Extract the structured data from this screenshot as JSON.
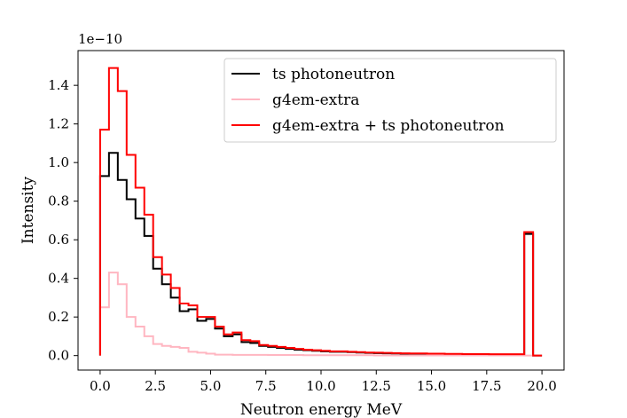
{
  "chart_data": {
    "type": "line",
    "drawstyle": "steps",
    "xlabel": "Neutron energy MeV",
    "ylabel": "Intensity",
    "y_offset_text": "1e−10",
    "xlim": [
      -1.0,
      21.0
    ],
    "ylim": [
      -0.075,
      1.58
    ],
    "xticks": [
      0.0,
      2.5,
      5.0,
      7.5,
      10.0,
      12.5,
      15.0,
      17.5,
      20.0
    ],
    "xtick_labels": [
      "0.0",
      "2.5",
      "5.0",
      "7.5",
      "10.0",
      "12.5",
      "15.0",
      "17.5",
      "20.0"
    ],
    "yticks": [
      0.0,
      0.2,
      0.4,
      0.6,
      0.8,
      1.0,
      1.2,
      1.4
    ],
    "ytick_labels": [
      "0.0",
      "0.2",
      "0.4",
      "0.6",
      "0.8",
      "1.0",
      "1.2",
      "1.4"
    ],
    "bin_edges": [
      0.0,
      0.4,
      0.8,
      1.2,
      1.6,
      2.0,
      2.4,
      2.8,
      3.2,
      3.6,
      4.0,
      4.4,
      4.8,
      5.2,
      5.6,
      6.0,
      6.4,
      6.8,
      7.2,
      7.6,
      8.0,
      8.4,
      8.8,
      9.2,
      9.6,
      10.0,
      10.4,
      10.8,
      11.2,
      11.6,
      12.0,
      12.4,
      12.8,
      13.2,
      13.6,
      14.0,
      14.4,
      14.8,
      15.2,
      15.6,
      16.0,
      16.4,
      16.8,
      17.2,
      17.6,
      18.0,
      18.4,
      18.8,
      19.2,
      19.6,
      20.0
    ],
    "legend_loc": "upper right",
    "grid": false,
    "series": [
      {
        "name": "ts photoneutron",
        "color": "#000000",
        "values": [
          0.93,
          1.05,
          0.91,
          0.81,
          0.71,
          0.62,
          0.45,
          0.37,
          0.3,
          0.23,
          0.24,
          0.18,
          0.19,
          0.14,
          0.1,
          0.11,
          0.07,
          0.065,
          0.05,
          0.045,
          0.04,
          0.035,
          0.03,
          0.028,
          0.025,
          0.022,
          0.02,
          0.02,
          0.018,
          0.016,
          0.014,
          0.013,
          0.012,
          0.011,
          0.01,
          0.009,
          0.009,
          0.008,
          0.008,
          0.007,
          0.007,
          0.006,
          0.006,
          0.006,
          0.005,
          0.005,
          0.005,
          0.005,
          0.63,
          0.0
        ]
      },
      {
        "name": "g4em-extra",
        "color": "#ffb6c1",
        "values": [
          0.25,
          0.43,
          0.37,
          0.2,
          0.15,
          0.1,
          0.06,
          0.05,
          0.045,
          0.04,
          0.02,
          0.015,
          0.01,
          0.005,
          0.005,
          0.004,
          0.004,
          0.004,
          0.004,
          0.003,
          0.003,
          0.003,
          0.003,
          0.002,
          0.002,
          0.002,
          0.002,
          0.002,
          0.002,
          0.002,
          0.002,
          0.001,
          0.001,
          0.001,
          0.001,
          0.001,
          0.001,
          0.001,
          0.001,
          0.001,
          0.001,
          0.001,
          0.001,
          0.001,
          0.001,
          0.001,
          0.001,
          0.001,
          0.0,
          0.0
        ]
      },
      {
        "name": "g4em-extra + ts photoneutron",
        "color": "#ff0000",
        "values": [
          1.17,
          1.49,
          1.37,
          1.04,
          0.87,
          0.73,
          0.51,
          0.42,
          0.35,
          0.27,
          0.26,
          0.2,
          0.2,
          0.15,
          0.11,
          0.12,
          0.08,
          0.075,
          0.055,
          0.05,
          0.045,
          0.04,
          0.035,
          0.03,
          0.028,
          0.025,
          0.022,
          0.022,
          0.02,
          0.018,
          0.016,
          0.015,
          0.014,
          0.013,
          0.012,
          0.011,
          0.011,
          0.01,
          0.01,
          0.009,
          0.009,
          0.008,
          0.008,
          0.008,
          0.007,
          0.007,
          0.007,
          0.007,
          0.64,
          0.0
        ]
      }
    ]
  }
}
